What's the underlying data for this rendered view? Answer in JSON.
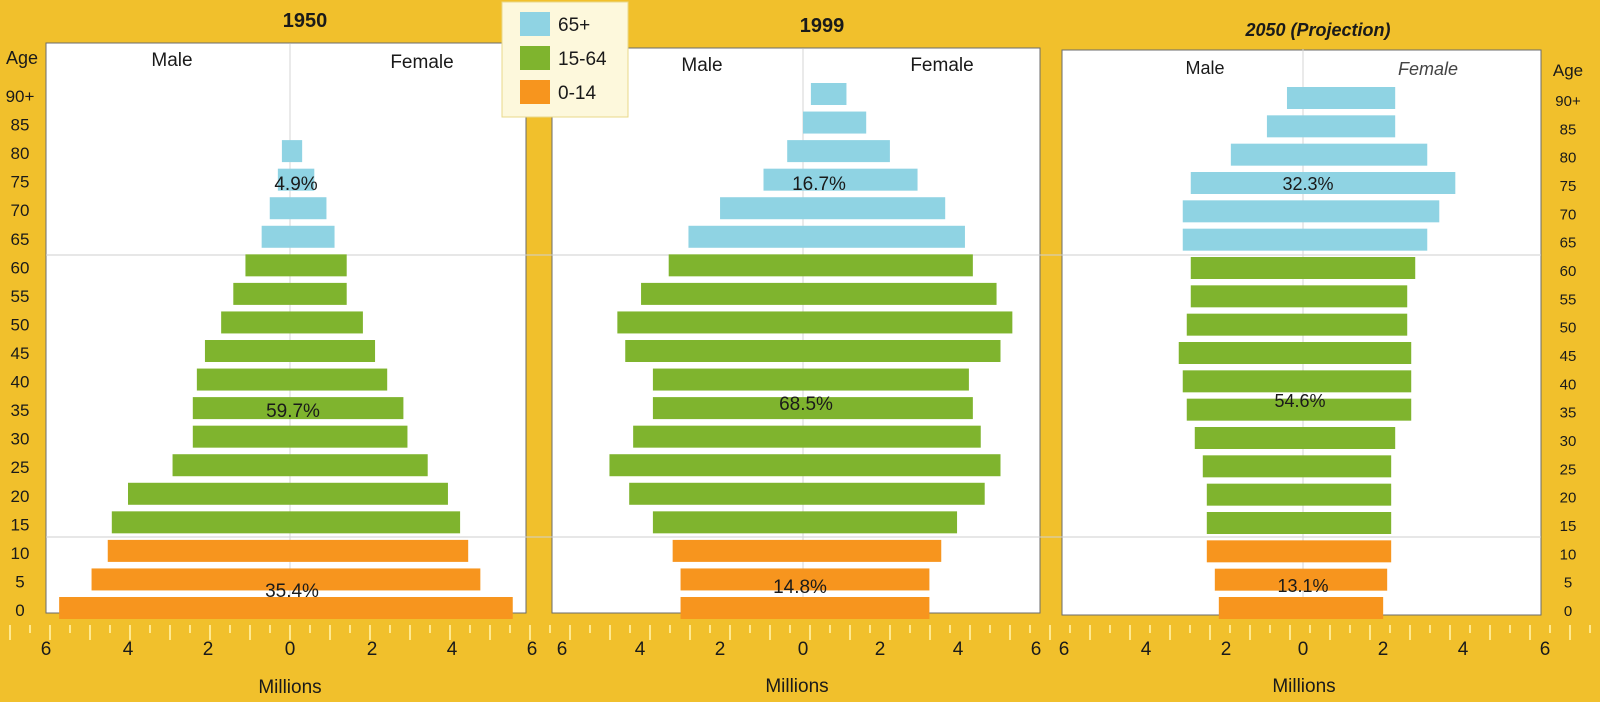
{
  "colors": {
    "background": "#f1c02c",
    "panel": "#ffffff",
    "age_65_plus": "#8fd3e3",
    "age_15_64": "#7fb42e",
    "age_0_14": "#f7951e",
    "text": "#1a1a1a"
  },
  "legend": [
    {
      "label": "65+",
      "color": "#8fd3e3"
    },
    {
      "label": "15-64",
      "color": "#7fb42e"
    },
    {
      "label": "0-14",
      "color": "#f7951e"
    }
  ],
  "labels": {
    "age_axis": "Age",
    "male": "Male",
    "female": "Female",
    "x_axis": "Millions"
  },
  "chart_data": [
    {
      "type": "bar",
      "title": "1950",
      "xlabel": "Millions",
      "ylabel": "Age",
      "xlim": [
        -6,
        6
      ],
      "x_ticks": [
        "6",
        "4",
        "2",
        "0",
        "2",
        "4",
        "6"
      ],
      "age_ticks": [
        "0",
        "5",
        "10",
        "15",
        "20",
        "25",
        "30",
        "35",
        "40",
        "45",
        "50",
        "55",
        "60",
        "65",
        "70",
        "75",
        "80",
        "85",
        "90+"
      ],
      "group_shares": {
        "age_65_plus": "4.9%",
        "age_15_64": "59.7%",
        "age_0_14": "35.4%"
      },
      "categories": [
        "0-4",
        "5-9",
        "10-14",
        "15-19",
        "20-24",
        "25-29",
        "30-34",
        "35-39",
        "40-44",
        "45-49",
        "50-54",
        "55-59",
        "60-64",
        "65-69",
        "70-74",
        "75-79",
        "80-84"
      ],
      "series": [
        {
          "name": "Male",
          "values": [
            5.7,
            4.9,
            4.5,
            4.4,
            4.0,
            2.9,
            2.4,
            2.4,
            2.3,
            2.1,
            1.7,
            1.4,
            1.1,
            0.7,
            0.5,
            0.3,
            0.2
          ]
        },
        {
          "name": "Female",
          "values": [
            5.5,
            4.7,
            4.4,
            4.2,
            3.9,
            3.4,
            2.9,
            2.8,
            2.4,
            2.1,
            1.8,
            1.4,
            1.4,
            1.1,
            0.9,
            0.6,
            0.3
          ]
        }
      ]
    },
    {
      "type": "bar",
      "title": "1999",
      "xlabel": "Millions",
      "ylabel": "Age",
      "xlim": [
        -6,
        6
      ],
      "x_ticks": [
        "6",
        "4",
        "2",
        "0",
        "2",
        "4",
        "6"
      ],
      "age_ticks": [
        "0",
        "5",
        "10",
        "15",
        "20",
        "25",
        "30",
        "35",
        "40",
        "45",
        "50",
        "55",
        "60",
        "65",
        "70",
        "75",
        "80",
        "85",
        "90+"
      ],
      "group_shares": {
        "age_65_plus": "16.7%",
        "age_15_64": "68.5%",
        "age_0_14": "14.8%"
      },
      "categories": [
        "0-4",
        "5-9",
        "10-14",
        "15-19",
        "20-24",
        "25-29",
        "30-34",
        "35-39",
        "40-44",
        "45-49",
        "50-54",
        "55-59",
        "60-64",
        "65-69",
        "70-74",
        "75-79",
        "80-84",
        "85-89",
        "90+"
      ],
      "series": [
        {
          "name": "Male",
          "values": [
            3.1,
            3.1,
            3.3,
            3.8,
            4.4,
            4.9,
            4.3,
            3.8,
            3.8,
            4.5,
            4.7,
            4.1,
            3.4,
            2.9,
            2.1,
            1.0,
            0.4,
            0.0,
            -0.2
          ]
        },
        {
          "name": "Female",
          "values": [
            3.2,
            3.2,
            3.5,
            3.9,
            4.6,
            5.0,
            4.5,
            4.3,
            4.2,
            5.0,
            5.3,
            4.9,
            4.3,
            4.1,
            3.6,
            2.9,
            2.2,
            1.6,
            1.1
          ]
        }
      ]
    },
    {
      "type": "bar",
      "title": "2050 (Projection)",
      "xlabel": "Millions",
      "ylabel": "Age",
      "xlim": [
        -6,
        6
      ],
      "x_ticks": [
        "6",
        "4",
        "2",
        "0",
        "2",
        "4",
        "6"
      ],
      "age_ticks": [
        "0",
        "5",
        "10",
        "15",
        "20",
        "25",
        "30",
        "35",
        "40",
        "45",
        "50",
        "55",
        "60",
        "65",
        "70",
        "75",
        "80",
        "85",
        "90+"
      ],
      "group_shares": {
        "age_65_plus": "32.3%",
        "age_15_64": "54.6%",
        "age_0_14": "13.1%"
      },
      "categories": [
        "0-4",
        "5-9",
        "10-14",
        "15-19",
        "20-24",
        "25-29",
        "30-34",
        "35-39",
        "40-44",
        "45-49",
        "50-54",
        "55-59",
        "60-64",
        "65-69",
        "70-74",
        "75-79",
        "80-84",
        "85-89",
        "90+"
      ],
      "series": [
        {
          "name": "Male",
          "values": [
            2.1,
            2.2,
            2.4,
            2.4,
            2.4,
            2.5,
            2.7,
            2.9,
            3.0,
            3.1,
            2.9,
            2.8,
            2.8,
            3.0,
            3.0,
            2.8,
            1.8,
            0.9,
            0.4
          ]
        },
        {
          "name": "Female",
          "values": [
            2.0,
            2.1,
            2.2,
            2.2,
            2.2,
            2.2,
            2.3,
            2.7,
            2.7,
            2.7,
            2.6,
            2.6,
            2.8,
            3.1,
            3.4,
            3.8,
            3.1,
            2.3,
            2.3
          ]
        }
      ]
    }
  ]
}
